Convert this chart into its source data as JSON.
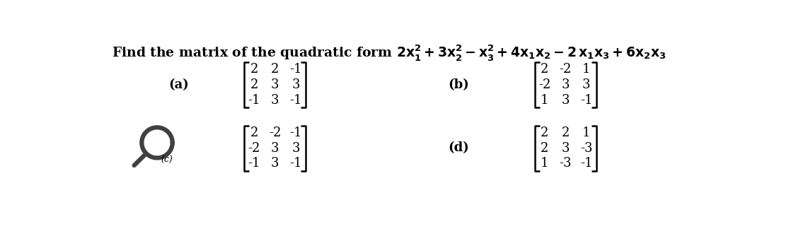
{
  "bg_color": "#ffffff",
  "title_plain": "Find the matrix of the quadratic form ",
  "title_math": "$2x_1^2 + 3x_2^2 - x_3^2 + 4x_1x_2 - 2\\,x_1x_3 + 6x_2x_3$",
  "label_a": "(a)",
  "label_b": "(b)",
  "label_d": "(d)",
  "matrix_a": [
    [
      2,
      2,
      -1
    ],
    [
      2,
      3,
      3
    ],
    [
      -1,
      3,
      -1
    ]
  ],
  "matrix_b": [
    [
      2,
      -2,
      1
    ],
    [
      -2,
      3,
      3
    ],
    [
      1,
      3,
      -1
    ]
  ],
  "matrix_c": [
    [
      2,
      -2,
      -1
    ],
    [
      -2,
      3,
      3
    ],
    [
      -1,
      3,
      -1
    ]
  ],
  "matrix_d": [
    [
      2,
      2,
      1
    ],
    [
      2,
      3,
      -3
    ],
    [
      1,
      -3,
      -1
    ]
  ],
  "title_fontsize": 13.5,
  "matrix_fontsize": 13,
  "label_fontsize": 13
}
